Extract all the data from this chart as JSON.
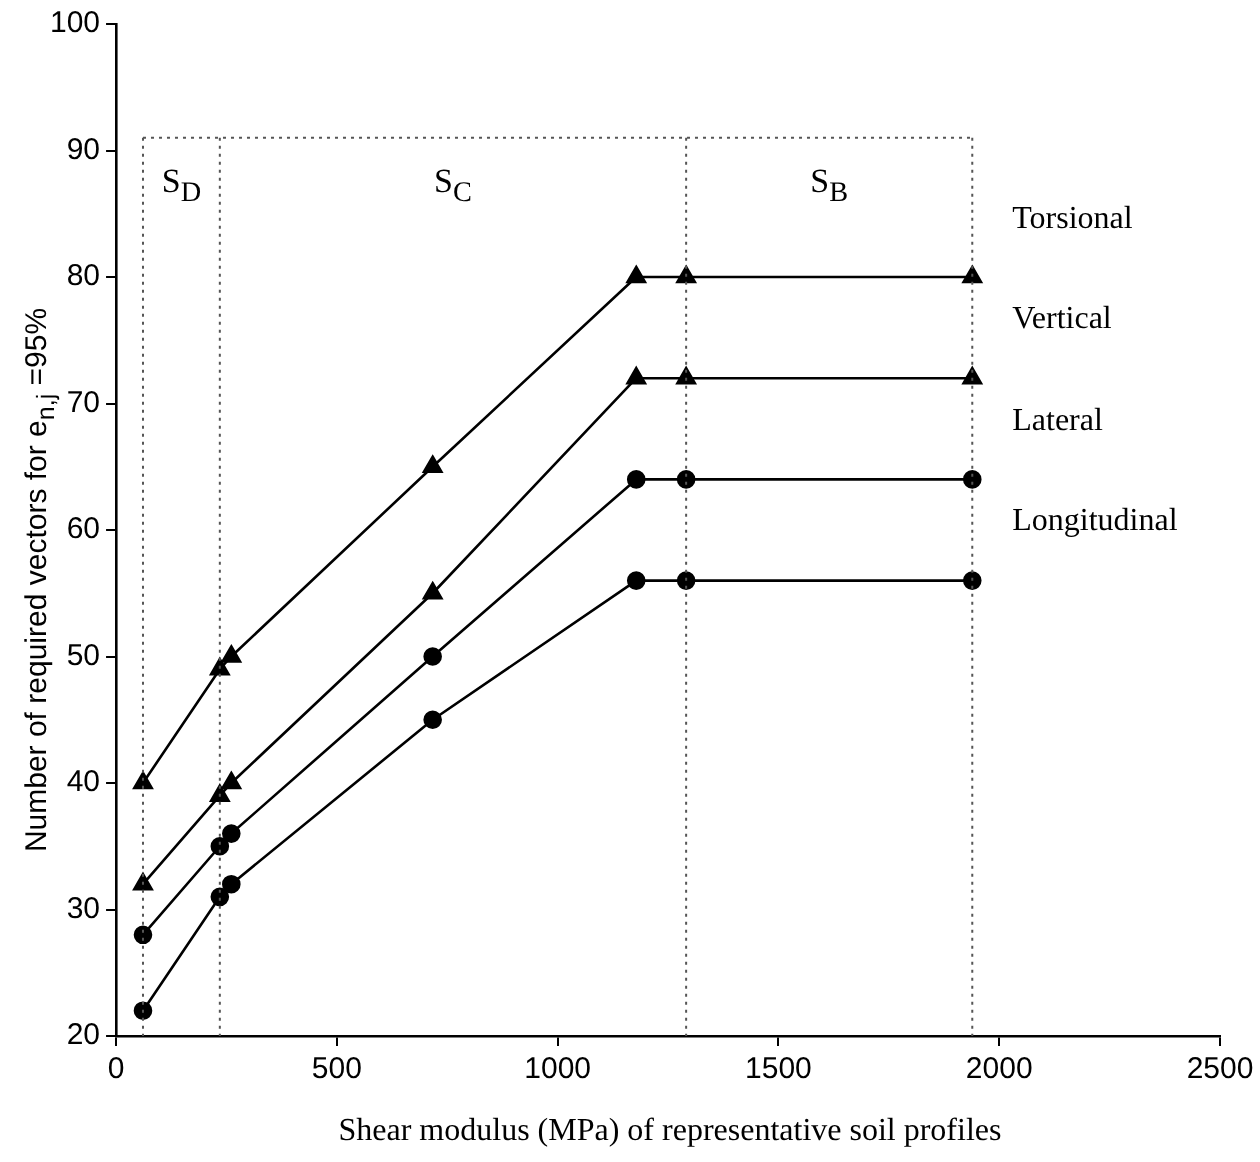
{
  "chart_data": {
    "type": "line",
    "xlabel": "Shear modulus (MPa) of representative soil profiles",
    "ylabel": "Number of required vectors for e$_{n,j}$ =95%",
    "x": [
      61,
      235,
      261,
      717,
      1178,
      1291,
      1939
    ],
    "series": [
      {
        "name": "Torsional",
        "color": "#000000",
        "marker": "triangle",
        "values": [
          40,
          49,
          50,
          65,
          80,
          80,
          80
        ]
      },
      {
        "name": "Vertical",
        "color": "#000000",
        "marker": "triangle",
        "values": [
          32,
          39,
          40,
          55,
          72,
          72,
          72
        ]
      },
      {
        "name": "Lateral",
        "color": "#000000",
        "marker": "circle",
        "values": [
          28,
          35,
          36,
          50,
          64,
          64,
          64
        ]
      },
      {
        "name": "Longitudinal",
        "color": "#000000",
        "marker": "circle",
        "values": [
          22,
          31,
          32,
          45,
          56,
          56,
          56
        ]
      }
    ],
    "xlim": [
      0,
      2500
    ],
    "xticks": [
      0,
      500,
      1000,
      1500,
      2000,
      2500
    ],
    "ylim": [
      20,
      100
    ],
    "yticks": [
      20,
      30,
      40,
      50,
      60,
      70,
      80,
      90,
      100
    ],
    "ref_lines": [
      {
        "axis": "y",
        "value": 91,
        "line_style": "dotted"
      },
      {
        "axis": "x",
        "value": 61,
        "line_style": "dotted"
      },
      {
        "axis": "x",
        "value": 235,
        "line_style": "dotted"
      },
      {
        "axis": "x",
        "value": 1291,
        "line_style": "dotted"
      },
      {
        "axis": "x",
        "value": 1939,
        "line_style": "dotted"
      }
    ],
    "annotations": [
      "S$_{D}$",
      "S$_{C}$",
      "S$_{B}$"
    ],
    "grid": false,
    "legend": false,
    "line_style": "solid"
  }
}
